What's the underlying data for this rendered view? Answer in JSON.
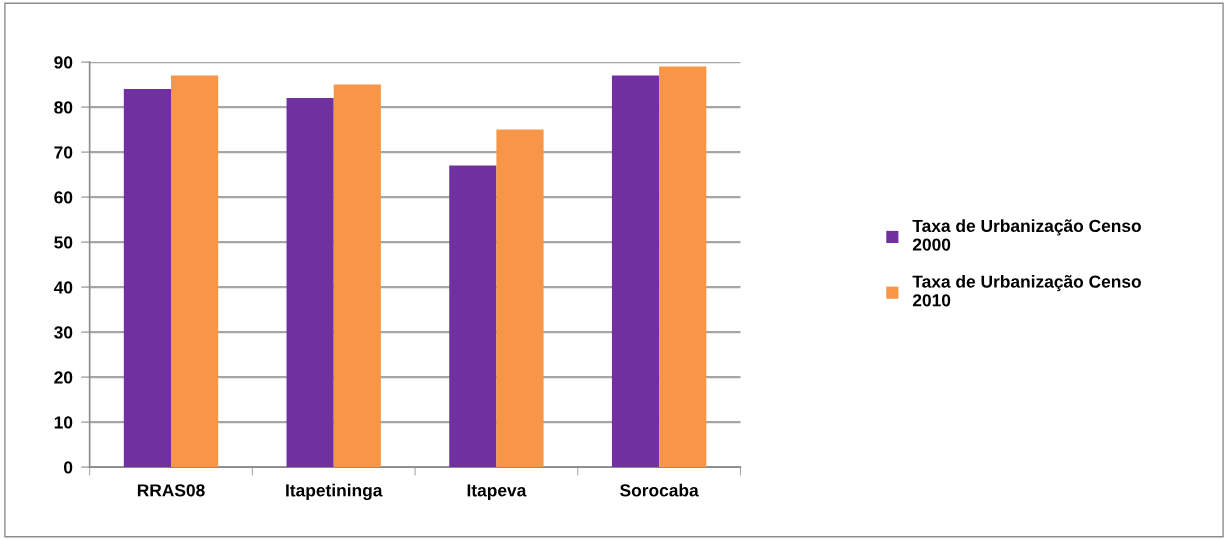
{
  "chart_data": {
    "type": "bar",
    "categories": [
      "RRAS08",
      "Itapetininga",
      "Itapeva",
      "Sorocaba"
    ],
    "series": [
      {
        "name": "Taxa de Urbanização Censo 2000",
        "color": "#7030a0",
        "values": [
          84,
          82,
          67,
          87
        ]
      },
      {
        "name": "Taxa de Urbanização Censo 2010",
        "color": "#f79646",
        "values": [
          87,
          85,
          75,
          89
        ]
      }
    ],
    "ylim": [
      0,
      90
    ],
    "yticks": [
      0,
      10,
      20,
      30,
      40,
      50,
      60,
      70,
      80,
      90
    ],
    "grid": "y",
    "legend": "right"
  }
}
